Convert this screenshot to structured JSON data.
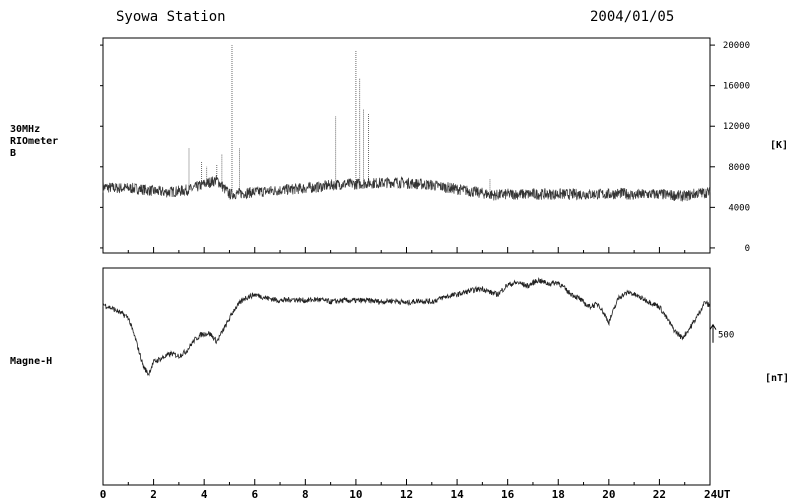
{
  "header": {
    "station": "Syowa Station",
    "date": "2004/01/05"
  },
  "chart_data": [
    {
      "type": "line",
      "name": "riometer",
      "label_lines": [
        "30MHz",
        "RIOmeter",
        "B"
      ],
      "unit": "[K]",
      "xlim": [
        0,
        24
      ],
      "ylim": [
        -500,
        20700
      ],
      "y_ticks": [
        0,
        4000,
        8000,
        12000,
        16000,
        20000
      ],
      "y_tick_labels": [
        "0",
        "4000",
        "8000",
        "12000",
        "16000",
        "20000"
      ],
      "y_axis_side": "right",
      "x": [
        0,
        0.5,
        1,
        1.5,
        2,
        2.5,
        3,
        3.5,
        4,
        4.5,
        5,
        5.5,
        6,
        6.5,
        7,
        7.5,
        8,
        8.5,
        9,
        9.5,
        10,
        10.5,
        11,
        11.5,
        12,
        12.5,
        13,
        13.5,
        14,
        14.5,
        15,
        15.5,
        16,
        16.5,
        17,
        17.5,
        18,
        18.5,
        19,
        19.5,
        20,
        20.5,
        21,
        21.5,
        22,
        22.5,
        23,
        23.5,
        24
      ],
      "values": [
        6000,
        5900,
        5900,
        5800,
        5600,
        5500,
        5600,
        5800,
        6300,
        6700,
        5300,
        5400,
        5500,
        5600,
        5700,
        5800,
        5900,
        6000,
        6200,
        6300,
        6300,
        6400,
        6400,
        6500,
        6400,
        6300,
        6200,
        6000,
        5800,
        5600,
        5400,
        5200,
        5300,
        5300,
        5300,
        5300,
        5300,
        5300,
        5300,
        5300,
        5300,
        5400,
        5200,
        5300,
        5300,
        5200,
        5100,
        5400,
        5500
      ],
      "spikes": [
        {
          "x": 3.4,
          "y": 9800
        },
        {
          "x": 3.9,
          "y": 8500
        },
        {
          "x": 4.1,
          "y": 8000
        },
        {
          "x": 4.5,
          "y": 8200
        },
        {
          "x": 4.7,
          "y": 9300
        },
        {
          "x": 5.1,
          "y": 20000
        },
        {
          "x": 5.4,
          "y": 9800
        },
        {
          "x": 9.2,
          "y": 13000
        },
        {
          "x": 10.0,
          "y": 19500
        },
        {
          "x": 10.15,
          "y": 16700
        },
        {
          "x": 10.3,
          "y": 13700
        },
        {
          "x": 10.5,
          "y": 13200
        },
        {
          "x": 15.3,
          "y": 6800
        }
      ]
    },
    {
      "type": "line",
      "name": "magne-h",
      "label": "Magne-H",
      "unit": "[nT]",
      "scale_bar_label": "500",
      "scale_bar_value": 500,
      "xlim": [
        0,
        24
      ],
      "ylim": [
        -1500,
        300
      ],
      "x_ticks": [
        0,
        2,
        4,
        6,
        8,
        10,
        12,
        14,
        16,
        18,
        20,
        22,
        24
      ],
      "x_tick_labels": [
        "0",
        "2",
        "4",
        "6",
        "8",
        "10",
        "12",
        "14",
        "16",
        "18",
        "20",
        "22",
        "24UT"
      ],
      "x": [
        0,
        0.5,
        1,
        1.3,
        1.6,
        1.8,
        2.0,
        2.3,
        2.7,
        3.0,
        3.3,
        3.6,
        3.9,
        4.2,
        4.5,
        4.9,
        5.2,
        5.6,
        6.0,
        6.5,
        7,
        7.5,
        8,
        8.5,
        9,
        9.5,
        10,
        10.5,
        11,
        11.5,
        12,
        12.5,
        13,
        13.5,
        14,
        14.5,
        15,
        15.3,
        15.6,
        16,
        16.4,
        16.8,
        17.2,
        17.6,
        18,
        18.4,
        18.8,
        19.2,
        19.6,
        20,
        20.4,
        20.8,
        21.2,
        21.6,
        22,
        22.3,
        22.6,
        22.9,
        23.2,
        23.5,
        23.8,
        24
      ],
      "values": [
        0,
        -50,
        -110,
        -300,
        -520,
        -580,
        -480,
        -450,
        -410,
        -430,
        -390,
        -300,
        -250,
        -240,
        -310,
        -160,
        -40,
        50,
        80,
        50,
        30,
        40,
        30,
        40,
        20,
        30,
        30,
        30,
        20,
        30,
        10,
        30,
        20,
        60,
        80,
        110,
        130,
        100,
        80,
        160,
        180,
        150,
        200,
        170,
        180,
        100,
        50,
        -20,
        0,
        -150,
        60,
        100,
        60,
        20,
        -20,
        -120,
        -220,
        -280,
        -200,
        -100,
        20,
        -20
      ]
    }
  ]
}
